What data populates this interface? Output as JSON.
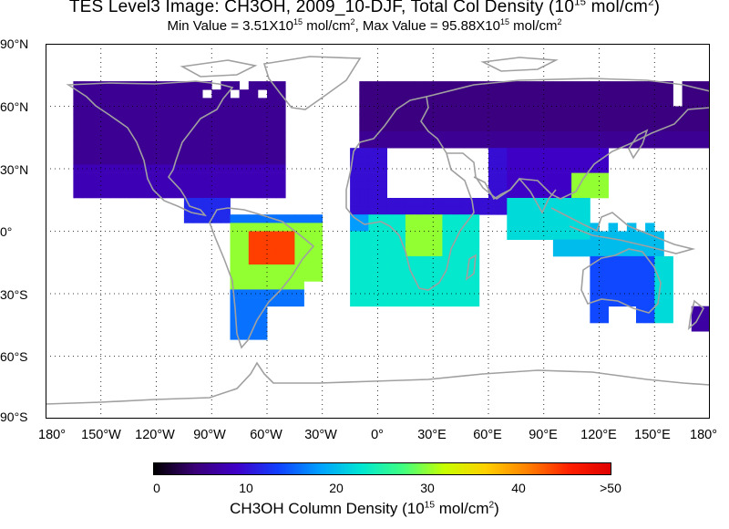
{
  "title": {
    "prefix": "TES Level3 Image: CH3OH, 2009_10-DJF, Total Col Density (10",
    "exp": "15",
    "suffix": " mol/cm",
    "unit_exp": "2",
    "close": ")"
  },
  "subtitle": {
    "min_label": "Min Value =  ",
    "min_value": "3.51X10",
    "min_exp": "15",
    "min_unit": " mol/cm",
    "min_unit_exp": "2",
    "sep": ",   ",
    "max_label": "Max Value =  ",
    "max_value": "95.88X10",
    "max_exp": "15",
    "max_unit": " mol/cm",
    "max_unit_exp": "2"
  },
  "map": {
    "lat_labels": [
      "90°N",
      "60°N",
      "30°N",
      "0°",
      "30°S",
      "60°S",
      "90°S"
    ],
    "lon_labels": [
      "180°",
      "150°W",
      "120°W",
      "90°W",
      "60°W",
      "30°W",
      "0°",
      "30°E",
      "60°E",
      "90°E",
      "120°E",
      "150°E",
      "180°"
    ],
    "coastline_color": "#a0a0a0",
    "gridline_style": "dotted"
  },
  "colorbar": {
    "ticks": [
      "0",
      "10",
      "20",
      "30",
      "40",
      ">50"
    ],
    "colors": [
      "#000000",
      "#3a0078",
      "#3f00c8",
      "#1040ff",
      "#00a0ff",
      "#00e6d2",
      "#40ff80",
      "#c8ff00",
      "#ffd000",
      "#ff8000",
      "#ff2000",
      "#e00000"
    ],
    "title": "CH3OH Column Density (10",
    "title_exp": "15",
    "title_unit": " mol/cm",
    "title_unit_exp": "2",
    "title_close": ")"
  },
  "regions": [
    {
      "name": "north-america-boreal",
      "value": 6
    },
    {
      "name": "eurasia-boreal",
      "value": 5
    },
    {
      "name": "amazon",
      "value": 38
    },
    {
      "name": "central-africa",
      "value": 27
    },
    {
      "name": "southeast-asia",
      "value": 22
    },
    {
      "name": "australia",
      "value": 14
    },
    {
      "name": "south-china",
      "value": 30
    }
  ]
}
